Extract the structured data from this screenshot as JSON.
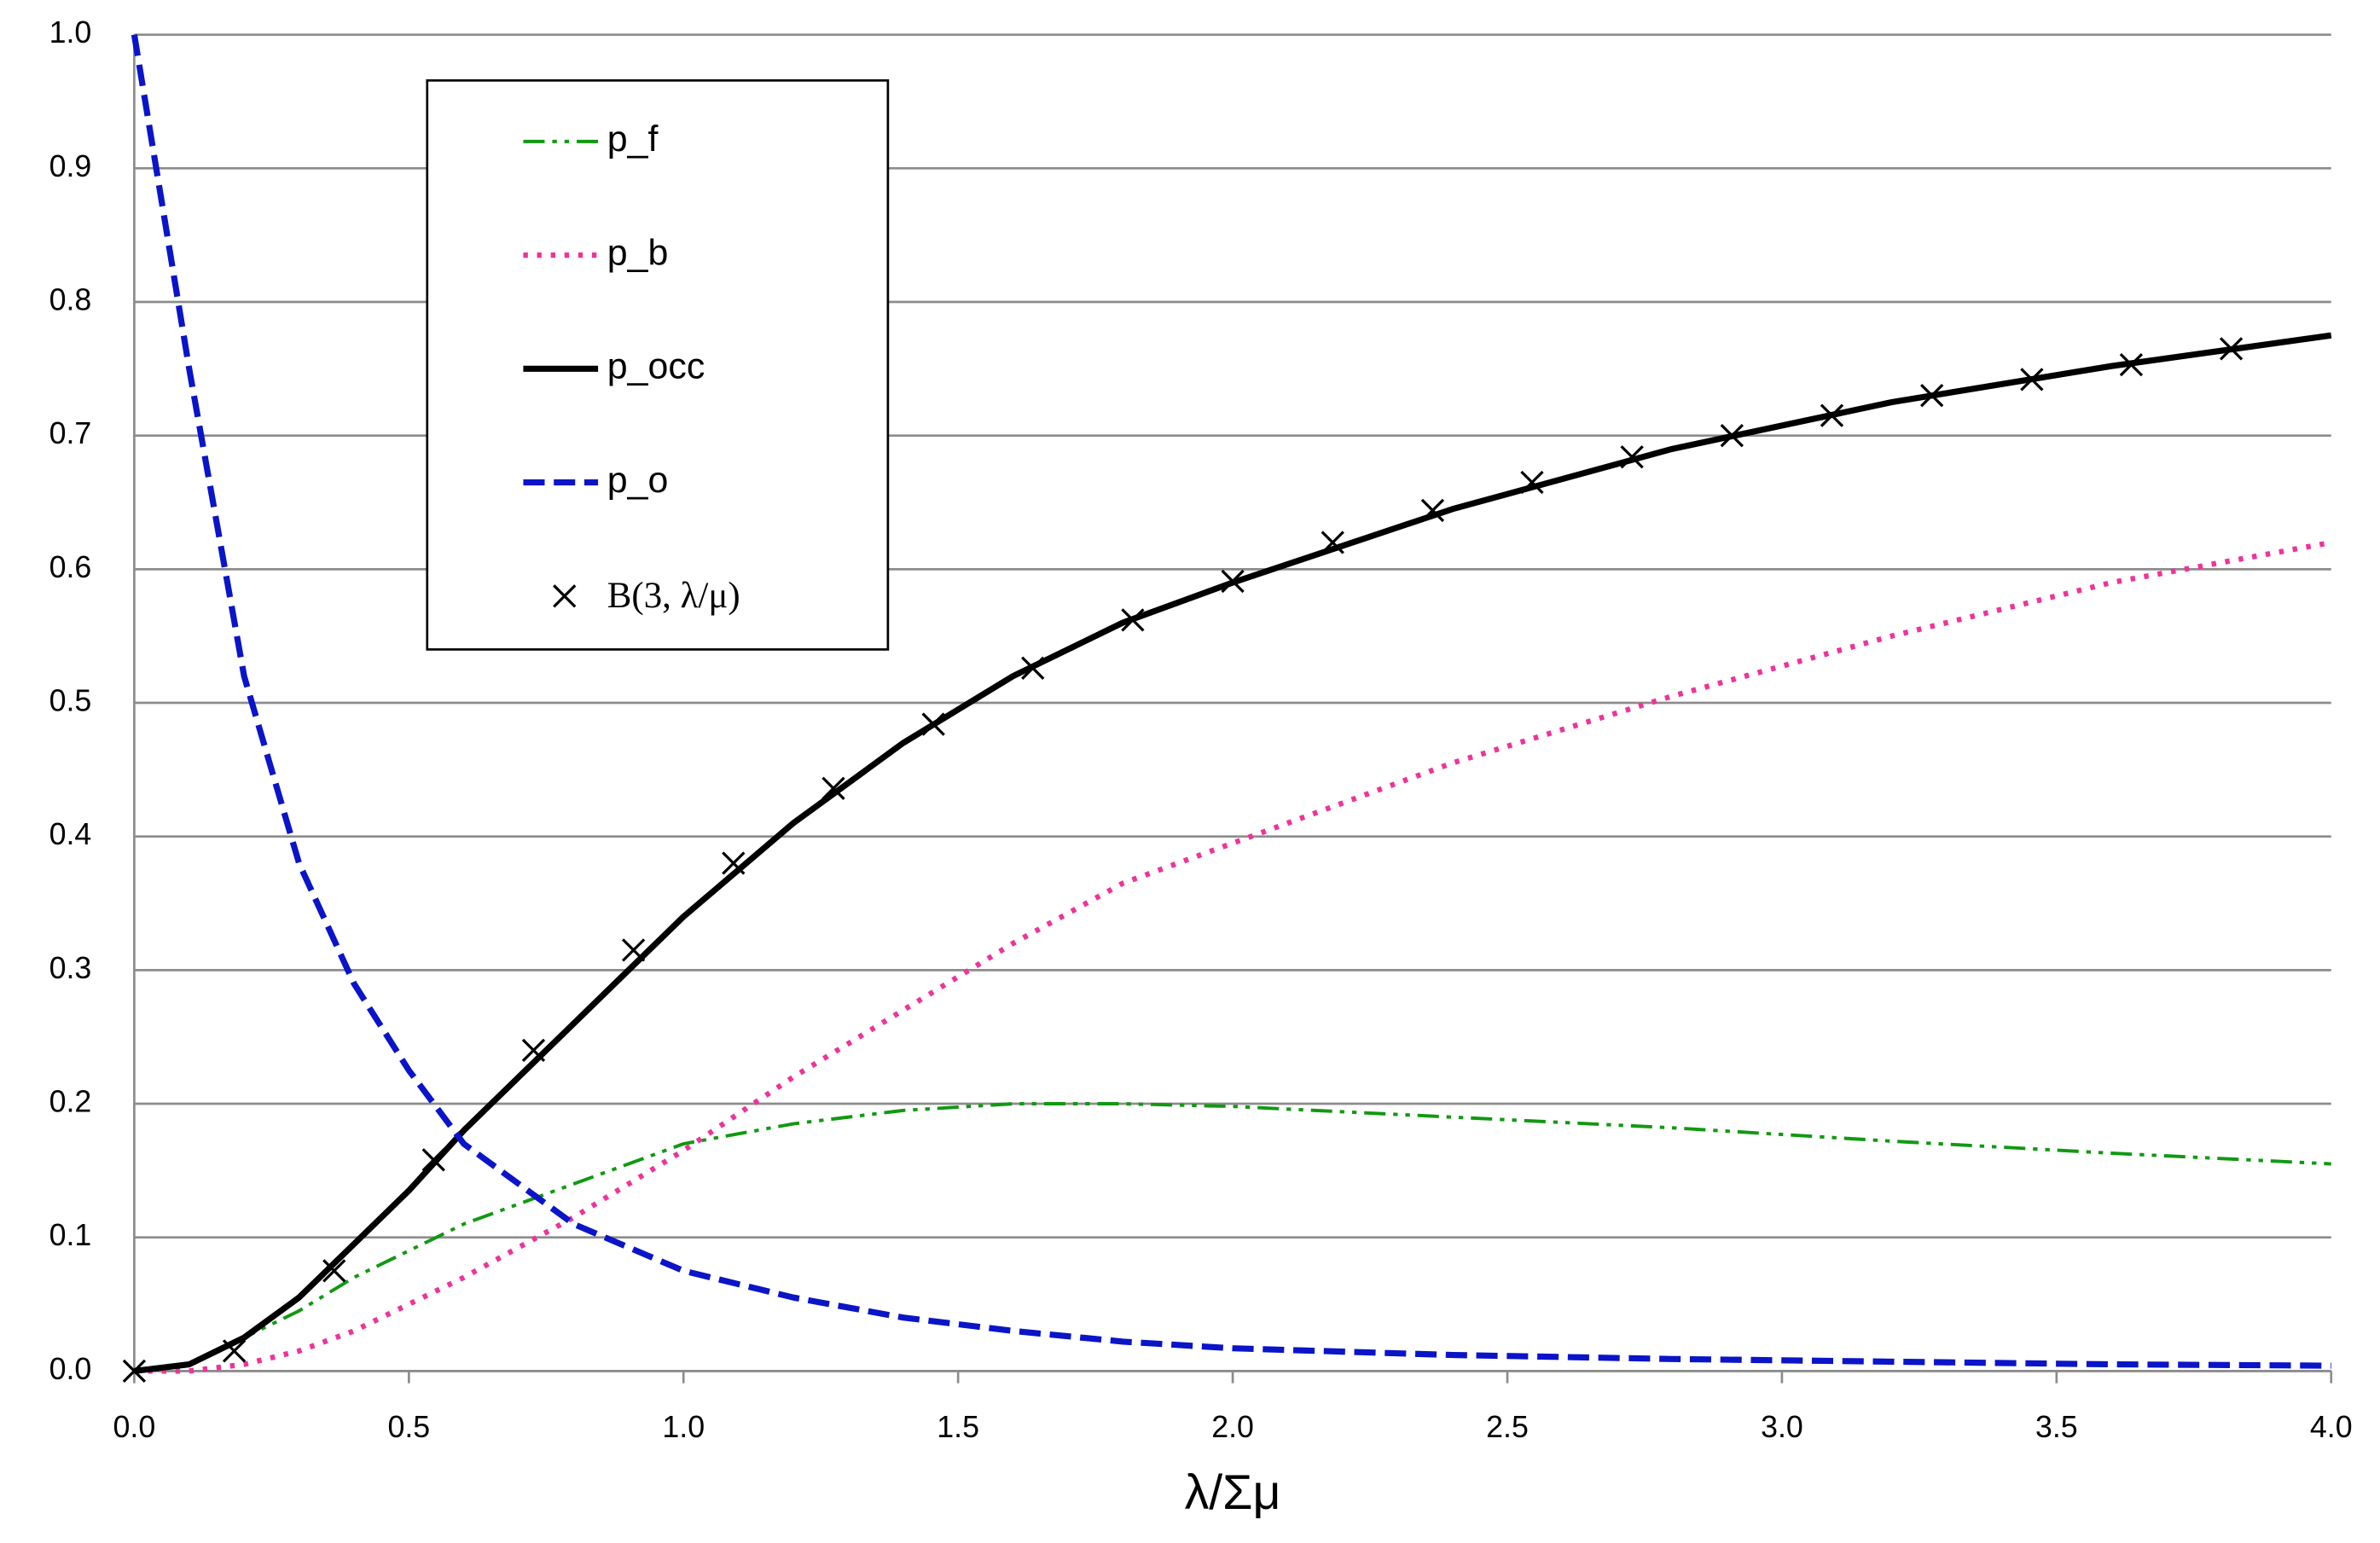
{
  "chart_data": {
    "type": "line",
    "x_label": "λ/Σμ",
    "xlim": [
      0,
      4
    ],
    "ylim": [
      0,
      1
    ],
    "xticks": [
      {
        "value": 0,
        "label": "0.0"
      },
      0.5,
      {
        "value": 1,
        "label": "1.0"
      },
      1.5,
      {
        "value": 2,
        "label": "2.0"
      },
      2.5,
      {
        "value": 3,
        "label": "3.0"
      },
      3.5,
      {
        "value": 4,
        "label": "4.0"
      }
    ],
    "yticks": [
      {
        "value": 0,
        "label": "0.0"
      },
      0.1,
      0.2,
      0.3,
      0.4,
      0.5,
      0.6,
      0.7,
      0.8,
      0.9,
      {
        "value": 1,
        "label": "1.0"
      }
    ],
    "grid": true,
    "legend": "top-left",
    "x": [
      0,
      0.1,
      0.2,
      0.3,
      0.4,
      0.5,
      0.6,
      0.8,
      1.0,
      1.2,
      1.4,
      1.6,
      1.8,
      2.0,
      2.4,
      2.8,
      3.2,
      3.6,
      4.0
    ],
    "series": [
      {
        "name": "p_f",
        "color": "#119911",
        "dash": "dashdotdot",
        "values": [
          0,
          0.005,
          0.025,
          0.045,
          0.07,
          0.09,
          0.11,
          0.14,
          0.17,
          0.185,
          0.195,
          0.2,
          0.2,
          0.198,
          0.19,
          0.182,
          0.172,
          0.163,
          0.155
        ]
      },
      {
        "name": "p_b",
        "color": "#ee3399",
        "dash": "dot",
        "values": [
          0,
          0,
          0.005,
          0.015,
          0.03,
          0.05,
          0.07,
          0.115,
          0.165,
          0.22,
          0.27,
          0.32,
          0.365,
          0.395,
          0.455,
          0.505,
          0.55,
          0.59,
          0.62
        ]
      },
      {
        "name": "p_occ",
        "color": "#000000",
        "dash": "solid",
        "values": [
          0,
          0.005,
          0.025,
          0.055,
          0.095,
          0.135,
          0.18,
          0.26,
          0.34,
          0.41,
          0.47,
          0.52,
          0.56,
          0.59,
          0.645,
          0.69,
          0.725,
          0.752,
          0.775
        ]
      },
      {
        "name": "p_o",
        "color": "#0a14c8",
        "dash": "dash",
        "values": [
          1.0,
          0.75,
          0.52,
          0.38,
          0.29,
          0.225,
          0.17,
          0.11,
          0.075,
          0.055,
          0.04,
          0.03,
          0.022,
          0.017,
          0.012,
          0.009,
          0.007,
          0.005,
          0.004
        ]
      },
      {
        "name": "B(3, λ/μ)",
        "color": "#000000",
        "marker": "x",
        "x": [
          0,
          0.182,
          0.364,
          0.545,
          0.727,
          0.909,
          1.091,
          1.273,
          1.455,
          1.636,
          1.818,
          2.0,
          2.182,
          2.364,
          2.545,
          2.727,
          2.909,
          3.091,
          3.273,
          3.455,
          3.636,
          3.818
        ],
        "values": [
          0,
          0.015,
          0.075,
          0.158,
          0.24,
          0.315,
          0.38,
          0.436,
          0.484,
          0.526,
          0.562,
          0.591,
          0.62,
          0.644,
          0.665,
          0.684,
          0.7,
          0.715,
          0.73,
          0.742,
          0.753,
          0.765
        ]
      }
    ]
  }
}
